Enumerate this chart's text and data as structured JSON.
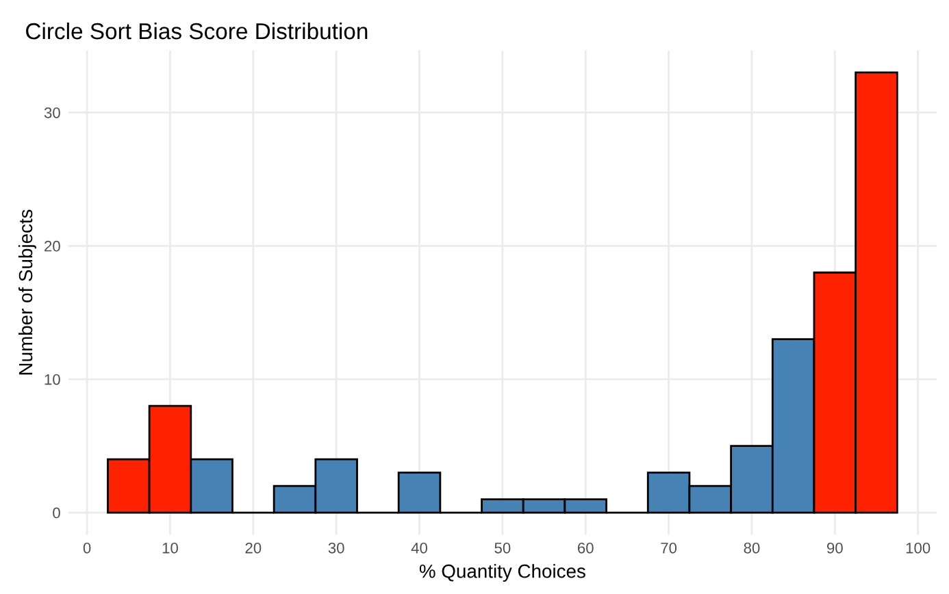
{
  "chart_data": {
    "type": "histogram",
    "title": "Circle Sort Bias Score Distribution",
    "xlabel": "% Quantity Choices",
    "ylabel": "Number of Subjects",
    "bins": [
      2.5,
      7.5,
      12.5,
      17.5,
      22.5,
      27.5,
      32.5,
      37.5,
      42.5,
      47.5,
      52.5,
      57.5,
      62.5,
      67.5,
      72.5,
      77.5,
      82.5,
      87.5,
      92.5,
      97.5
    ],
    "values": [
      4,
      8,
      4,
      0,
      2,
      4,
      0,
      3,
      0,
      1,
      1,
      1,
      0,
      3,
      2,
      5,
      13,
      18,
      33
    ],
    "colors": [
      "#ff2200",
      "#ff2200",
      "#4682b4",
      "#000000",
      "#4682b4",
      "#4682b4",
      "#000000",
      "#4682b4",
      "#000000",
      "#4682b4",
      "#4682b4",
      "#4682b4",
      "#000000",
      "#4682b4",
      "#4682b4",
      "#4682b4",
      "#4682b4",
      "#ff2200",
      "#ff2200"
    ],
    "xlim": [
      -2.25,
      102.25
    ],
    "ylim": [
      -1.65,
      34.65
    ],
    "xticks": [
      0,
      10,
      20,
      30,
      40,
      50,
      60,
      70,
      80,
      90,
      100
    ],
    "yticks": [
      0,
      10,
      20,
      30
    ],
    "grid": true
  }
}
